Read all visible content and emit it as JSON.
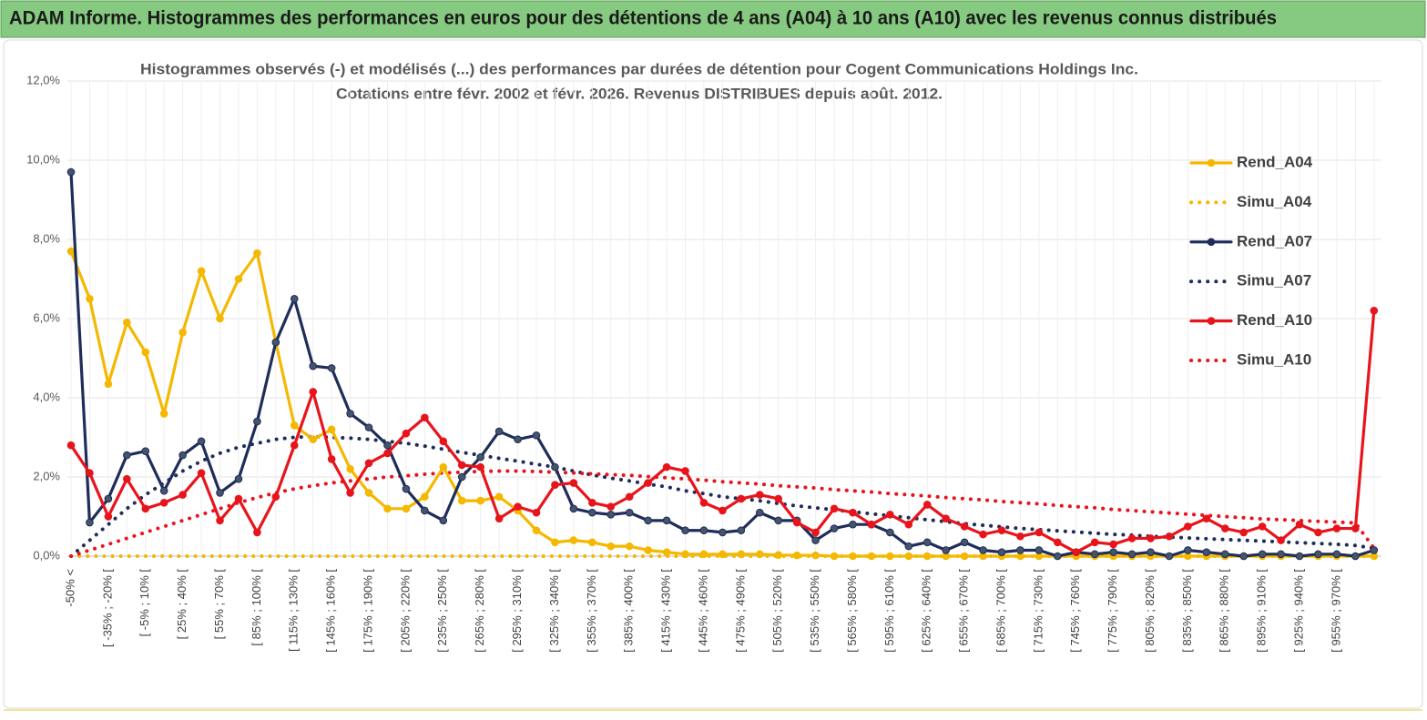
{
  "chart_data": {
    "type": "line",
    "title": "ADAM Informe. Histogrammes des performances en euros pour des détentions de 4 ans (A04) à 10 ans (A10) avec les revenus connus distribués",
    "subtitle": [
      "Histogrammes observés (-) et modélisés (...) des performances par durées de détention pour Cogent Communications Holdings Inc.",
      "Cotations entre févr. 2002 et févr. 2026. Revenus DISTRIBUES depuis août. 2012."
    ],
    "categories": [
      "-50% <",
      null,
      "[ -35% ; -20% [",
      null,
      "[ -5% ; 10% [",
      null,
      "[ 25% ; 40% [",
      null,
      "[ 55% ; 70% [",
      null,
      "[ 85% ; 100% [",
      null,
      "[ 115% ; 130% [",
      null,
      "[ 145% ; 160% [",
      null,
      "[ 175% ; 190% [",
      null,
      "[ 205% ; 220% [",
      null,
      "[ 235% ; 250% [",
      null,
      "[ 265% ; 280% [",
      null,
      "[ 295% ; 310% [",
      null,
      "[ 325% ; 340% [",
      null,
      "[ 355% ; 370% [",
      null,
      "[ 385% ; 400% [",
      null,
      "[ 415% ; 430% [",
      null,
      "[ 445% ; 460% [",
      null,
      "[ 475% ; 490% [",
      null,
      "[ 505% ; 520% [",
      null,
      "[ 535% ; 550% [",
      null,
      "[ 565% ; 580% [",
      null,
      "[ 595% ; 610% [",
      null,
      "[ 625% ; 640% [",
      null,
      "[ 655% ; 670% [",
      null,
      "[ 685% ; 700% [",
      null,
      "[ 715% ; 730% [",
      null,
      "[ 745% ; 760% [",
      null,
      "[ 775% ; 790% [",
      null,
      "[ 805% ; 820% [",
      null,
      "[ 835% ; 850% [",
      null,
      "[ 865% ; 880% [",
      null,
      "[ 895% ; 910% [",
      null,
      "[ 925% ; 940% [",
      null,
      "[ 955% ; 970% [",
      null,
      null
    ],
    "series": [
      {
        "name": "Rend_A04",
        "color": "#f5b800",
        "line_style": "solid",
        "markers": true,
        "values": [
          7.7,
          6.5,
          4.35,
          5.9,
          5.15,
          3.6,
          5.65,
          7.2,
          6.0,
          7.0,
          7.65,
          5.4,
          3.3,
          2.95,
          3.2,
          2.2,
          1.6,
          1.2,
          1.2,
          1.5,
          2.25,
          1.4,
          1.4,
          1.5,
          1.15,
          0.65,
          0.35,
          0.4,
          0.35,
          0.25,
          0.25,
          0.15,
          0.1,
          0.05,
          0.05,
          0.05,
          0.05,
          0.05,
          0.03,
          0.02,
          0.02,
          0,
          0,
          0,
          0,
          0,
          0,
          0,
          0,
          0,
          0,
          0,
          0,
          0,
          0,
          0,
          0,
          0,
          0,
          0,
          0,
          0,
          0,
          0,
          0,
          0,
          0,
          0,
          0,
          0,
          0
        ]
      },
      {
        "name": "Simu_A04",
        "color": "#f5b800",
        "line_style": "dotted",
        "markers": false,
        "values": [
          0,
          0,
          0,
          0,
          0,
          0,
          0,
          0,
          0,
          0,
          0,
          0,
          0,
          0,
          0,
          0,
          0,
          0,
          0,
          0,
          0,
          0,
          0,
          0,
          0,
          0,
          0,
          0,
          0,
          0,
          0,
          0,
          0,
          0,
          0,
          0,
          0,
          0,
          0,
          0,
          0,
          0,
          0,
          0,
          0,
          0,
          0,
          0,
          0,
          0,
          0,
          0,
          0,
          0,
          0,
          0,
          0,
          0,
          0,
          0,
          0,
          0,
          0,
          0,
          0,
          0,
          0,
          0,
          0,
          0,
          0
        ]
      },
      {
        "name": "Rend_A07",
        "color": "#1f2d5a",
        "line_style": "solid",
        "markers": true,
        "values": [
          9.7,
          0.85,
          1.45,
          2.55,
          2.65,
          1.65,
          2.55,
          2.9,
          1.6,
          1.95,
          3.4,
          5.4,
          6.5,
          4.8,
          4.75,
          3.6,
          3.25,
          2.8,
          1.7,
          1.15,
          0.9,
          2.0,
          2.5,
          3.15,
          2.95,
          3.05,
          2.25,
          1.2,
          1.1,
          1.05,
          1.1,
          0.9,
          0.9,
          0.65,
          0.65,
          0.6,
          0.65,
          1.1,
          0.9,
          0.9,
          0.4,
          0.7,
          0.8,
          0.8,
          0.6,
          0.25,
          0.35,
          0.15,
          0.35,
          0.15,
          0.1,
          0.15,
          0.15,
          0,
          0.1,
          0.05,
          0.1,
          0.05,
          0.1,
          0,
          0.15,
          0.1,
          0.05,
          0,
          0.05,
          0.05,
          0,
          0.05,
          0.05,
          0,
          0.15
        ]
      },
      {
        "name": "Simu_A07",
        "color": "#1f2d5a",
        "line_style": "dotted",
        "markers": false,
        "values": [
          0,
          0.4,
          0.8,
          1.2,
          1.55,
          1.85,
          2.15,
          2.4,
          2.6,
          2.75,
          2.85,
          2.95,
          3.0,
          3.02,
          3.0,
          2.98,
          2.95,
          2.9,
          2.85,
          2.78,
          2.7,
          2.62,
          2.55,
          2.47,
          2.4,
          2.32,
          2.25,
          2.15,
          2.05,
          1.97,
          1.9,
          1.82,
          1.75,
          1.65,
          1.58,
          1.5,
          1.45,
          1.4,
          1.33,
          1.27,
          1.22,
          1.17,
          1.12,
          1.07,
          1.02,
          0.97,
          0.92,
          0.87,
          0.82,
          0.78,
          0.74,
          0.7,
          0.67,
          0.64,
          0.61,
          0.58,
          0.55,
          0.53,
          0.5,
          0.48,
          0.46,
          0.44,
          0.42,
          0.4,
          0.38,
          0.36,
          0.34,
          0.32,
          0.3,
          0.27,
          0.2
        ]
      },
      {
        "name": "Rend_A10",
        "color": "#e8141c",
        "line_style": "solid",
        "markers": true,
        "values": [
          2.8,
          2.1,
          1.0,
          1.95,
          1.2,
          1.35,
          1.55,
          2.1,
          0.9,
          1.45,
          0.6,
          1.5,
          2.8,
          4.15,
          2.45,
          1.6,
          2.35,
          2.6,
          3.1,
          3.5,
          2.9,
          2.3,
          2.25,
          0.95,
          1.25,
          1.1,
          1.8,
          1.85,
          1.35,
          1.25,
          1.5,
          1.85,
          2.25,
          2.15,
          1.35,
          1.15,
          1.45,
          1.55,
          1.45,
          0.85,
          0.6,
          1.2,
          1.1,
          0.8,
          1.05,
          0.8,
          1.3,
          0.95,
          0.75,
          0.55,
          0.65,
          0.5,
          0.6,
          0.35,
          0.1,
          0.35,
          0.3,
          0.45,
          0.45,
          0.5,
          0.75,
          0.95,
          0.7,
          0.6,
          0.75,
          0.4,
          0.8,
          0.6,
          0.7,
          0.7,
          6.2
        ]
      },
      {
        "name": "Simu_A10",
        "color": "#e8141c",
        "line_style": "dotted",
        "markers": false,
        "values": [
          0,
          0.15,
          0.3,
          0.45,
          0.6,
          0.75,
          0.9,
          1.05,
          1.2,
          1.35,
          1.48,
          1.6,
          1.7,
          1.78,
          1.85,
          1.9,
          1.95,
          2.0,
          2.03,
          2.07,
          2.1,
          2.12,
          2.14,
          2.15,
          2.15,
          2.14,
          2.12,
          2.1,
          2.08,
          2.06,
          2.04,
          2.01,
          1.98,
          1.95,
          1.92,
          1.88,
          1.85,
          1.82,
          1.78,
          1.75,
          1.72,
          1.68,
          1.65,
          1.62,
          1.58,
          1.55,
          1.52,
          1.48,
          1.45,
          1.42,
          1.38,
          1.35,
          1.32,
          1.28,
          1.25,
          1.22,
          1.18,
          1.15,
          1.12,
          1.09,
          1.06,
          1.03,
          1.0,
          0.97,
          0.94,
          0.92,
          0.9,
          0.88,
          0.86,
          0.84,
          0.2
        ]
      }
    ],
    "ylim": [
      0,
      12
    ],
    "yticks": [
      {
        "value": 0,
        "label": "0,0%"
      },
      {
        "value": 2,
        "label": "2,0%"
      },
      {
        "value": 4,
        "label": "4,0%"
      },
      {
        "value": 6,
        "label": "6,0%"
      },
      {
        "value": 8,
        "label": "8,0%"
      },
      {
        "value": 10,
        "label": "10,0%"
      },
      {
        "value": 12,
        "label": "12,0%"
      }
    ],
    "grid": true,
    "legend": "right"
  }
}
